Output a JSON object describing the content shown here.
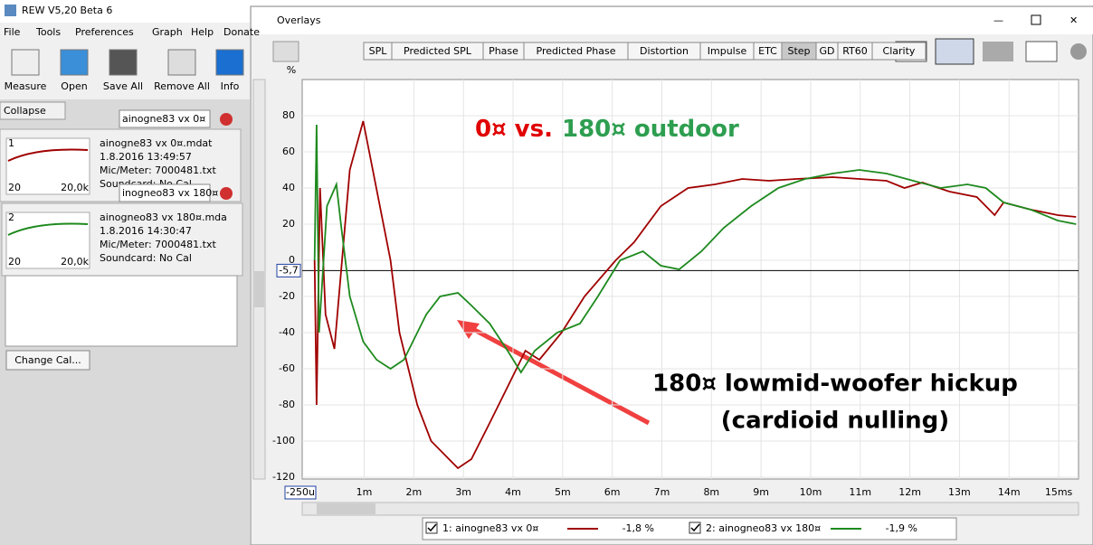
{
  "app": {
    "title": "REW V5,20 Beta 6",
    "menu": [
      "File",
      "Tools",
      "Preferences",
      "Graph",
      "Help",
      "Donate"
    ],
    "toolbar": [
      "Measure",
      "Open",
      "Save All",
      "Remove All",
      "Info"
    ],
    "collapse": "Collapse",
    "measurements": [
      {
        "name_field": "ainogne83 vx 0¤",
        "number": "1",
        "file": "ainogne83 vx 0¤.mdat",
        "date": "1.8.2016 13:49:57",
        "mic": "Mic/Meter: 7000481.txt",
        "soundcard": "Soundcard: No Cal",
        "axis_low": "20",
        "axis_high": "20,0k"
      },
      {
        "name_field": "inogneo83 vx 180¤",
        "number": "2",
        "file": "ainogneo83 vx 180¤.mda",
        "date": "1.8.2016 14:30:47",
        "mic": "Mic/Meter: 7000481.txt",
        "soundcard": "Soundcard: No Cal",
        "axis_low": "20",
        "axis_high": "20,0k"
      }
    ],
    "change_cal": "Change Cal..."
  },
  "overlays": {
    "title": "Overlays",
    "tabs": [
      "SPL",
      "Predicted SPL",
      "Phase",
      "Predicted Phase",
      "Distortion",
      "Impulse",
      "ETC",
      "Step",
      "GD",
      "RT60",
      "Clarity"
    ],
    "active_tab": "Step",
    "legend": [
      {
        "label": "1: ainogne83 vx 0¤",
        "value": "-1,8 %"
      },
      {
        "label": "2: ainogneo83 vx 180¤",
        "value": "-1,9 %"
      }
    ]
  },
  "chart_data": {
    "type": "line",
    "title_parts": [
      {
        "text": "0¤ vs.",
        "color": "#e00000"
      },
      {
        "text": "180¤ outdoor",
        "color": "#2e9e50"
      }
    ],
    "annotations": [
      "180¤ lowmid-woofer hickup",
      "(cardioid nulling)"
    ],
    "annotation_color": "#2e9e50",
    "y_unit": "%",
    "x_start_label": "-250u",
    "marker": {
      "value": -5.7,
      "label": "-5,7"
    },
    "xlim": [
      -0.25,
      15.4
    ],
    "ylim": [
      -121,
      100
    ],
    "xticks": [
      {
        "value": 1,
        "label": "1m"
      },
      {
        "value": 2,
        "label": "2m"
      },
      {
        "value": 3,
        "label": "3m"
      },
      {
        "value": 4,
        "label": "4m"
      },
      {
        "value": 5,
        "label": "5m"
      },
      {
        "value": 6,
        "label": "6m"
      },
      {
        "value": 7,
        "label": "7m"
      },
      {
        "value": 8,
        "label": "8m"
      },
      {
        "value": 9,
        "label": "9m"
      },
      {
        "value": 10,
        "label": "10m"
      },
      {
        "value": 11,
        "label": "11m"
      },
      {
        "value": 12,
        "label": "12m"
      },
      {
        "value": 13,
        "label": "13m"
      },
      {
        "value": 14,
        "label": "14m"
      },
      {
        "value": 15,
        "label": "15ms"
      }
    ],
    "yticks": [
      80,
      60,
      40,
      20,
      0,
      -20,
      -40,
      -60,
      -80,
      -100,
      -120
    ],
    "grid": true,
    "series": [
      {
        "name": "1: ainogne83 vx 0¤",
        "color": "#a00000",
        "x": [
          0,
          0.04,
          0.11,
          0.22,
          0.4,
          0.71,
          0.98,
          1.53,
          1.71,
          2.07,
          2.35,
          2.89,
          3.16,
          3.53,
          3.89,
          4.25,
          4.53,
          4.98,
          5.44,
          6.07,
          6.44,
          6.98,
          7.53,
          8.07,
          8.62,
          9.16,
          9.71,
          10.44,
          10.98,
          11.53,
          11.89,
          12.25,
          12.8,
          13.35,
          13.71,
          13.89,
          14.44,
          14.98,
          15.35
        ],
        "values": [
          0,
          -80,
          40,
          -30,
          -49,
          50,
          77,
          0,
          -40,
          -80,
          -100,
          -115,
          -110,
          -90,
          -70,
          -50,
          -55,
          -40,
          -20,
          0,
          10,
          30,
          40,
          42,
          45,
          44,
          45,
          46,
          45,
          44,
          40,
          43,
          38,
          35,
          25,
          32,
          28,
          25,
          24
        ]
      },
      {
        "name": "2: ainogneo83 vx 180¤",
        "color": "#1e8a1e",
        "x": [
          0,
          0.04,
          0.09,
          0.25,
          0.44,
          0.53,
          0.71,
          0.98,
          1.25,
          1.53,
          1.8,
          2.07,
          2.25,
          2.53,
          2.89,
          3.16,
          3.53,
          3.89,
          4.16,
          4.44,
          4.89,
          5.35,
          5.71,
          6.16,
          6.62,
          6.98,
          7.35,
          7.8,
          8.25,
          8.8,
          9.35,
          9.89,
          10.44,
          10.98,
          11.53,
          12.07,
          12.62,
          13.16,
          13.53,
          13.89,
          14.44,
          14.98,
          15.35
        ],
        "values": [
          0,
          75,
          -40,
          30,
          42,
          20,
          -20,
          -45,
          -55,
          -60,
          -55,
          -40,
          -30,
          -20,
          -18,
          -25,
          -35,
          -50,
          -62,
          -50,
          -40,
          -35,
          -20,
          0,
          5,
          -3,
          -5,
          5,
          18,
          30,
          40,
          45,
          48,
          50,
          48,
          44,
          40,
          42,
          40,
          32,
          28,
          22,
          20
        ]
      }
    ]
  }
}
